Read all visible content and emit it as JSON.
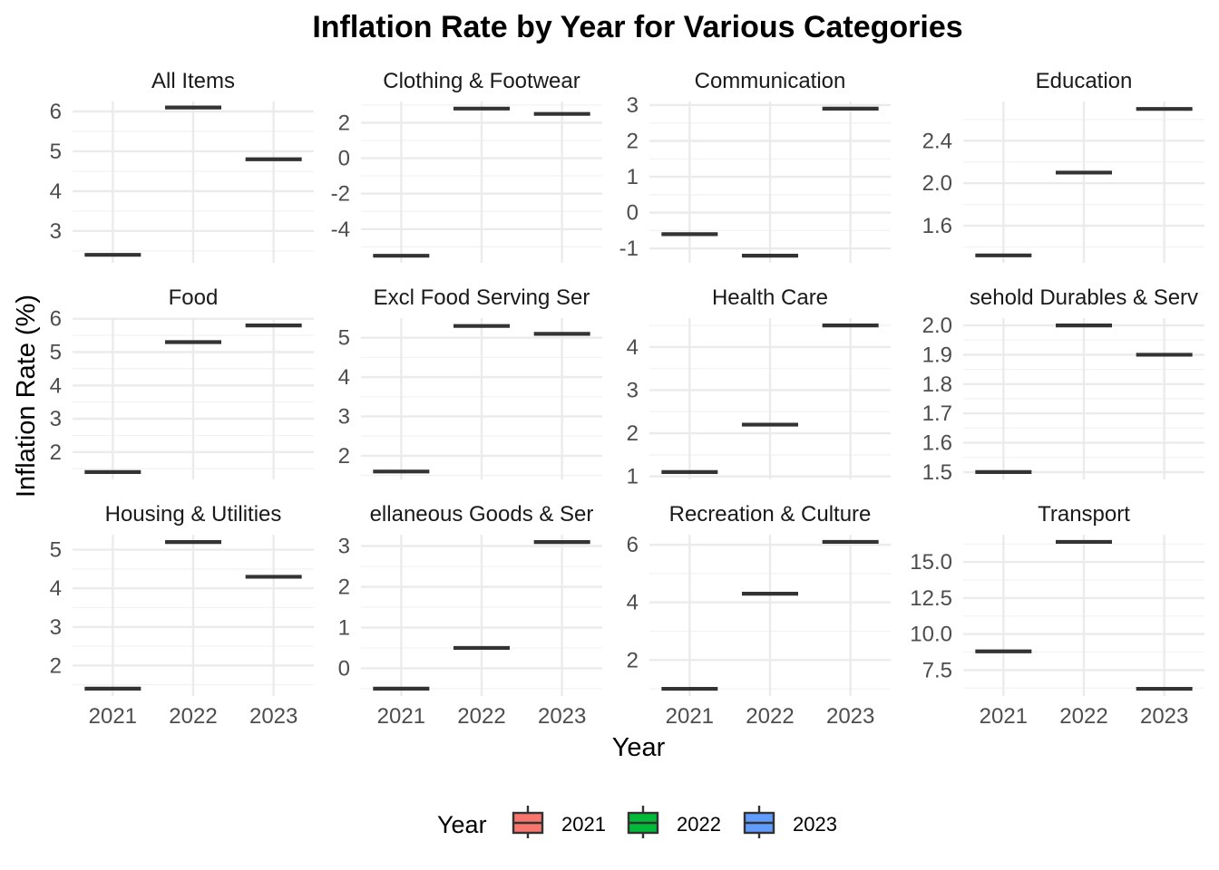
{
  "chart_data": {
    "type": "box",
    "title": "Inflation Rate by Year for Various Categories",
    "xlabel": "Year",
    "ylabel": "Inflation Rate (%)",
    "categories": [
      "2021",
      "2022",
      "2023"
    ],
    "legend": {
      "title": "Year",
      "position": "bottom",
      "entries": [
        {
          "label": "2021",
          "color": "#F8766D"
        },
        {
          "label": "2022",
          "color": "#00BA38"
        },
        {
          "label": "2023",
          "color": "#619CFF"
        }
      ]
    },
    "grid": true,
    "panels": [
      {
        "strip": "All Items",
        "values": [
          2.4,
          6.1,
          4.8
        ],
        "ylim": [
          2.2,
          6.25
        ],
        "yticks": [
          3,
          4,
          5,
          6
        ],
        "ytick_labels": [
          "3",
          "4",
          "5",
          "6"
        ]
      },
      {
        "strip": "Clothing & Footwear",
        "values": [
          -5.5,
          2.8,
          2.5
        ],
        "ylim": [
          -5.9,
          3.2
        ],
        "yticks": [
          -4,
          -2,
          0,
          2
        ],
        "ytick_labels": [
          "-4",
          "-2",
          "0",
          "2"
        ]
      },
      {
        "strip": "Communication",
        "values": [
          -0.6,
          -1.2,
          2.9
        ],
        "ylim": [
          -1.4,
          3.1
        ],
        "yticks": [
          -1,
          0,
          1,
          2,
          3
        ],
        "ytick_labels": [
          "-1",
          "0",
          "1",
          "2",
          "3"
        ]
      },
      {
        "strip": "Education",
        "values": [
          1.32,
          2.1,
          2.7
        ],
        "ylim": [
          1.25,
          2.77
        ],
        "yticks": [
          1.6,
          2.0,
          2.4
        ],
        "ytick_labels": [
          "1.6",
          "2.0",
          "2.4"
        ]
      },
      {
        "strip": "Food",
        "values": [
          1.4,
          5.3,
          5.8
        ],
        "ylim": [
          1.18,
          6.02
        ],
        "yticks": [
          2,
          3,
          4,
          5,
          6
        ],
        "ytick_labels": [
          "2",
          "3",
          "4",
          "5",
          "6"
        ]
      },
      {
        "strip": "Excl Food Serving Ser",
        "values": [
          1.6,
          5.3,
          5.1
        ],
        "ylim": [
          1.4,
          5.5
        ],
        "yticks": [
          2,
          3,
          4,
          5
        ],
        "ytick_labels": [
          "2",
          "3",
          "4",
          "5"
        ]
      },
      {
        "strip": "Health Care",
        "values": [
          1.1,
          2.2,
          4.5
        ],
        "ylim": [
          0.93,
          4.67
        ],
        "yticks": [
          1,
          2,
          3,
          4
        ],
        "ytick_labels": [
          "1",
          "2",
          "3",
          "4"
        ]
      },
      {
        "strip": "sehold Durables & Serv",
        "values": [
          1.5,
          2.0,
          1.9
        ],
        "ylim": [
          1.475,
          2.025
        ],
        "yticks": [
          1.5,
          1.6,
          1.7,
          1.8,
          1.9,
          2.0
        ],
        "ytick_labels": [
          "1.5",
          "1.6",
          "1.7",
          "1.8",
          "1.9",
          "2.0"
        ]
      },
      {
        "strip": "Housing & Utilities",
        "values": [
          1.4,
          5.2,
          4.3
        ],
        "ylim": [
          1.21,
          5.39
        ],
        "yticks": [
          2,
          3,
          4,
          5
        ],
        "ytick_labels": [
          "2",
          "3",
          "4",
          "5"
        ]
      },
      {
        "strip": "ellaneous Goods & Ser",
        "values": [
          -0.5,
          0.5,
          3.1
        ],
        "ylim": [
          -0.68,
          3.28
        ],
        "yticks": [
          0,
          1,
          2,
          3
        ],
        "ytick_labels": [
          "0",
          "1",
          "2",
          "3"
        ]
      },
      {
        "strip": "Recreation & Culture",
        "values": [
          1.0,
          4.3,
          6.1
        ],
        "ylim": [
          0.75,
          6.35
        ],
        "yticks": [
          2,
          4,
          6
        ],
        "ytick_labels": [
          "2",
          "4",
          "6"
        ]
      },
      {
        "strip": "Transport",
        "values": [
          8.8,
          16.4,
          6.2
        ],
        "ylim": [
          5.7,
          16.9
        ],
        "yticks": [
          7.5,
          10.0,
          12.5,
          15.0
        ],
        "ytick_labels": [
          "7.5",
          "10.0",
          "12.5",
          "15.0"
        ]
      }
    ]
  }
}
